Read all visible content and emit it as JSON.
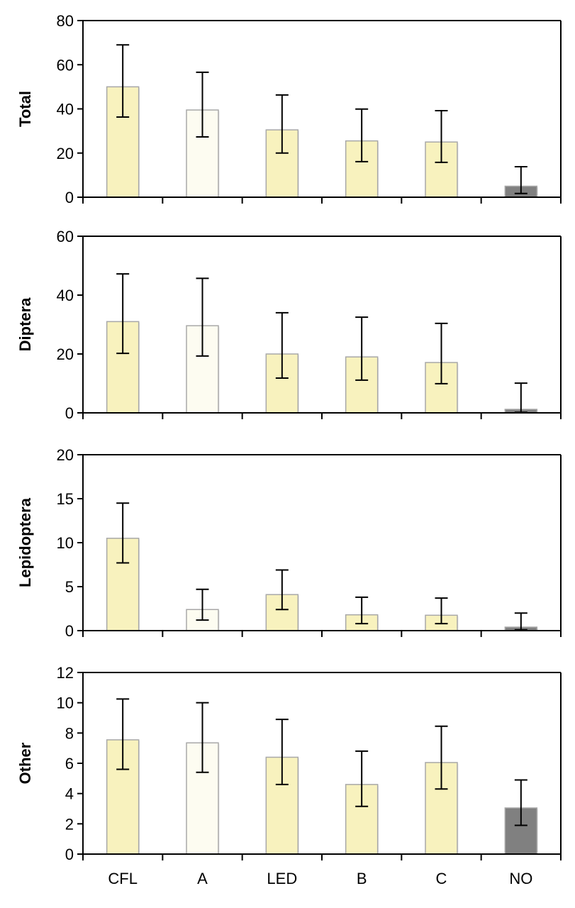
{
  "chart_data": {
    "type": "bar",
    "categories": [
      "CFL",
      "A",
      "LED",
      "B",
      "C",
      "NO"
    ],
    "bar_colors": [
      "#F8F2BE",
      "#FDFCF1",
      "#F8F2BE",
      "#F8F2BE",
      "#F8F2BE",
      "#808080"
    ],
    "panels": [
      {
        "ylabel": "Total",
        "ylim": [
          0,
          80
        ],
        "yticks": [
          "0",
          "20",
          "40",
          "60",
          "80"
        ],
        "ytick_values": [
          0,
          20,
          40,
          60,
          80
        ],
        "values": [
          50,
          39.5,
          30.5,
          25.5,
          25,
          5
        ],
        "err_low": [
          36.3,
          27.3,
          20,
          16.1,
          15.8,
          1.7
        ],
        "err_high": [
          69,
          56.6,
          46.3,
          39.9,
          39.2,
          13.8
        ]
      },
      {
        "ylabel": "Diptera",
        "ylim": [
          0,
          60
        ],
        "yticks": [
          "0",
          "20",
          "40",
          "60"
        ],
        "ytick_values": [
          0,
          20,
          40,
          60
        ],
        "values": [
          31,
          29.6,
          20,
          19,
          17.1,
          1.2
        ],
        "err_low": [
          20.2,
          19.3,
          11.8,
          11.1,
          9.9,
          0.2
        ],
        "err_high": [
          47.2,
          45.7,
          34,
          32.5,
          30.4,
          10.1
        ]
      },
      {
        "ylabel": "Lepidoptera",
        "ylim": [
          0,
          20
        ],
        "yticks": [
          "0",
          "5",
          "10",
          "15",
          "20"
        ],
        "ytick_values": [
          0,
          5,
          10,
          15,
          20
        ],
        "values": [
          10.5,
          2.4,
          4.1,
          1.8,
          1.75,
          0.4
        ],
        "err_low": [
          7.7,
          1.2,
          2.4,
          0.8,
          0.8,
          0.1
        ],
        "err_high": [
          14.5,
          4.7,
          6.9,
          3.8,
          3.7,
          2.0
        ]
      },
      {
        "ylabel": "Other",
        "ylim": [
          0,
          12
        ],
        "yticks": [
          "0",
          "2",
          "4",
          "6",
          "8",
          "10",
          "12"
        ],
        "ytick_values": [
          0,
          2,
          4,
          6,
          8,
          10,
          12
        ],
        "values": [
          7.55,
          7.35,
          6.4,
          4.6,
          6.05,
          3.05
        ],
        "err_low": [
          5.6,
          5.4,
          4.6,
          3.15,
          4.3,
          1.9
        ],
        "err_high": [
          10.25,
          10,
          8.9,
          6.8,
          8.45,
          4.9
        ]
      }
    ],
    "xlabel": "",
    "grid": false,
    "legend": "none"
  }
}
